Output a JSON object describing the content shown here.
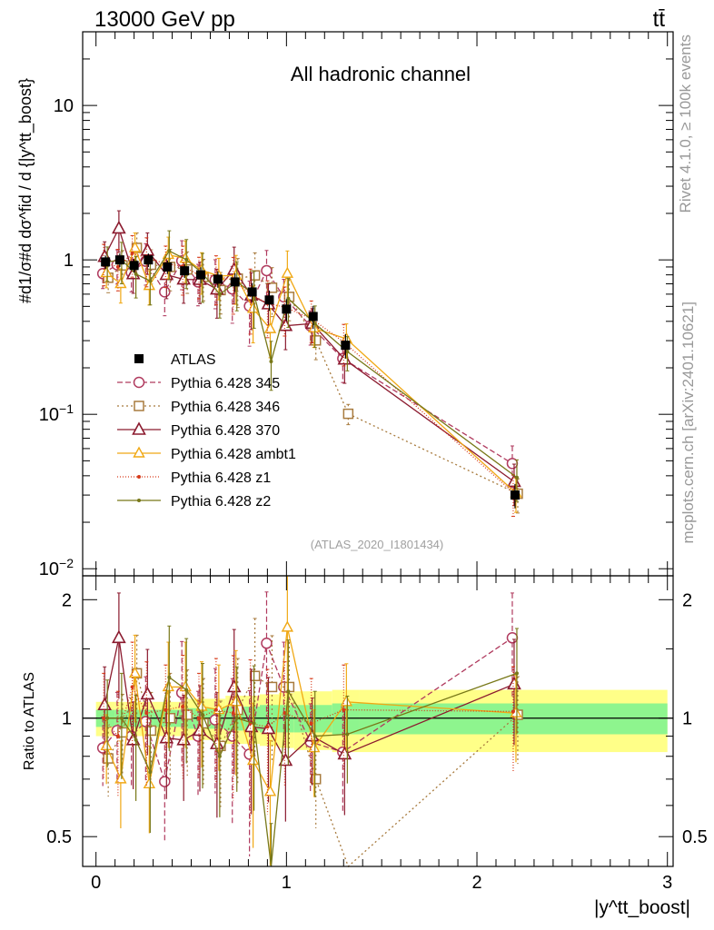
{
  "header": {
    "energy": "13000 GeV pp",
    "process": "tt̄",
    "channel": "All hadronic channel",
    "analysis_id": "(ATLAS_2020_I1801434)",
    "rivet": "Rivet 4.1.0, ≥ 100k events",
    "site": "mcplots.cern.ch [arXiv:2401.10621]"
  },
  "main_plot": {
    "ylabel": "#d1/σ#d dσ^fid / d {|y^tt_boost}",
    "y_ticks": [
      "10^-2",
      "10^-1",
      "1",
      "10"
    ]
  },
  "ratio_plot": {
    "ylabel": "Ratio to ATLAS",
    "y_ticks": [
      "0.5",
      "1",
      "2"
    ]
  },
  "xaxis": {
    "label": "|y^tt_boost|",
    "ticks": [
      "0",
      "1",
      "2",
      "3"
    ]
  },
  "legend": [
    "ATLAS",
    "Pythia 6.428 345",
    "Pythia 6.428 346",
    "Pythia 6.428 370",
    "Pythia 6.428 ambt1",
    "Pythia 6.428 z1",
    "Pythia 6.428 z2"
  ],
  "chart_data": {
    "type": "scatter",
    "title": "All hadronic channel",
    "xlabel": "|y^tt_boost|",
    "ylabel": "1/σ dσ/d|y^tt_boost|",
    "xlim": [
      -0.07,
      3.03
    ],
    "ylim": [
      0.009,
      30
    ],
    "yscale": "log",
    "ratio_ylim": [
      0.42,
      2.3
    ],
    "x": [
      0.05,
      0.125,
      0.2,
      0.275,
      0.375,
      0.465,
      0.55,
      0.64,
      0.73,
      0.82,
      0.91,
      1.0,
      1.14,
      1.31,
      2.2
    ],
    "x_edges": [
      0.0,
      0.1,
      0.15,
      0.25,
      0.3,
      0.45,
      0.48,
      0.6,
      0.68,
      0.78,
      0.86,
      0.96,
      1.04,
      1.24,
      1.38,
      3.0
    ],
    "data": {
      "name": "ATLAS",
      "values": [
        0.97,
        1.0,
        0.92,
        1.0,
        0.9,
        0.85,
        0.8,
        0.75,
        0.72,
        0.62,
        0.55,
        0.48,
        0.43,
        0.28,
        0.03
      ],
      "band_inner": [
        0.05,
        0.05,
        0.05,
        0.05,
        0.05,
        0.05,
        0.06,
        0.06,
        0.07,
        0.07,
        0.08,
        0.08,
        0.08,
        0.09,
        0.09
      ],
      "band_outer": [
        0.1,
        0.1,
        0.1,
        0.1,
        0.1,
        0.1,
        0.12,
        0.12,
        0.14,
        0.14,
        0.15,
        0.16,
        0.17,
        0.18,
        0.18
      ]
    },
    "series": [
      {
        "name": "Pythia 6.428 345",
        "color": "#b03a5e",
        "marker": "circle",
        "dash": "6,3",
        "ratios": [
          0.84,
          0.93,
          0.9,
          0.98,
          0.69,
          1.16,
          0.9,
          0.99,
          0.9,
          0.81,
          1.55,
          1.2,
          0.87,
          0.82,
          1.6
        ],
        "errors": [
          0.2,
          0.25,
          0.25,
          0.3,
          0.3,
          0.35,
          0.3,
          0.35,
          0.4,
          0.45,
          0.35,
          0.3,
          0.25,
          0.3,
          0.3
        ]
      },
      {
        "name": "Pythia 6.428 346",
        "color": "#a87b3e",
        "marker": "square",
        "dash": "2,3",
        "ratios": [
          0.79,
          0.92,
          1.3,
          0.93,
          1.0,
          1.02,
          0.97,
          0.85,
          1.05,
          1.28,
          1.2,
          1.2,
          0.7,
          0.36,
          1.02
        ],
        "errors": [
          0.2,
          0.25,
          0.25,
          0.25,
          0.3,
          0.3,
          0.3,
          0.3,
          0.35,
          0.4,
          0.35,
          0.3,
          0.25,
          0.15,
          0.25
        ]
      },
      {
        "name": "Pythia 6.428 370",
        "color": "#8b1a2e",
        "marker": "triangle",
        "dash": "",
        "ratios": [
          1.08,
          1.6,
          0.88,
          1.15,
          0.89,
          0.88,
          0.93,
          0.86,
          1.2,
          0.95,
          0.94,
          0.78,
          0.9,
          0.81,
          1.22
        ],
        "errors": [
          0.25,
          0.3,
          0.25,
          0.3,
          0.3,
          0.3,
          0.3,
          0.35,
          0.4,
          0.4,
          0.35,
          0.3,
          0.25,
          0.3,
          0.3
        ]
      },
      {
        "name": "Pythia 6.428 ambt1",
        "color": "#f0a814",
        "marker": "triangle-open",
        "dash": "",
        "ratios": [
          0.85,
          0.7,
          1.3,
          0.68,
          1.2,
          1.2,
          1.07,
          1.05,
          1.1,
          0.78,
          0.65,
          1.7,
          0.84,
          1.1,
          1.03
        ],
        "errors": [
          0.2,
          0.25,
          0.25,
          0.25,
          0.3,
          0.3,
          0.3,
          0.3,
          0.35,
          0.4,
          0.35,
          0.4,
          0.25,
          0.25,
          0.25
        ]
      },
      {
        "name": "Pythia 6.428 z1",
        "color": "#d63a1a",
        "marker": "dot",
        "dash": "1,2",
        "ratios": [
          1.0,
          0.9,
          1.2,
          1.03,
          1.05,
          1.07,
          1.0,
          1.05,
          1.03,
          0.97,
          0.95,
          1.03,
          0.97,
          1.05,
          1.04
        ],
        "errors": [
          0.3,
          0.3,
          0.3,
          0.35,
          0.3,
          0.35,
          0.3,
          0.35,
          0.4,
          0.45,
          0.4,
          0.35,
          0.3,
          0.3,
          0.3
        ]
      },
      {
        "name": "Pythia 6.428 z2",
        "color": "#787818",
        "marker": "dot",
        "dash": "",
        "ratios": [
          1.0,
          1.0,
          0.88,
          0.73,
          1.27,
          1.18,
          1.02,
          0.8,
          1.0,
          0.97,
          0.4,
          1.17,
          0.9,
          0.91,
          1.3
        ],
        "errors": [
          0.25,
          0.3,
          0.3,
          0.3,
          0.35,
          0.35,
          0.35,
          0.3,
          0.35,
          0.4,
          0.35,
          0.35,
          0.3,
          0.25,
          0.3
        ]
      }
    ]
  }
}
